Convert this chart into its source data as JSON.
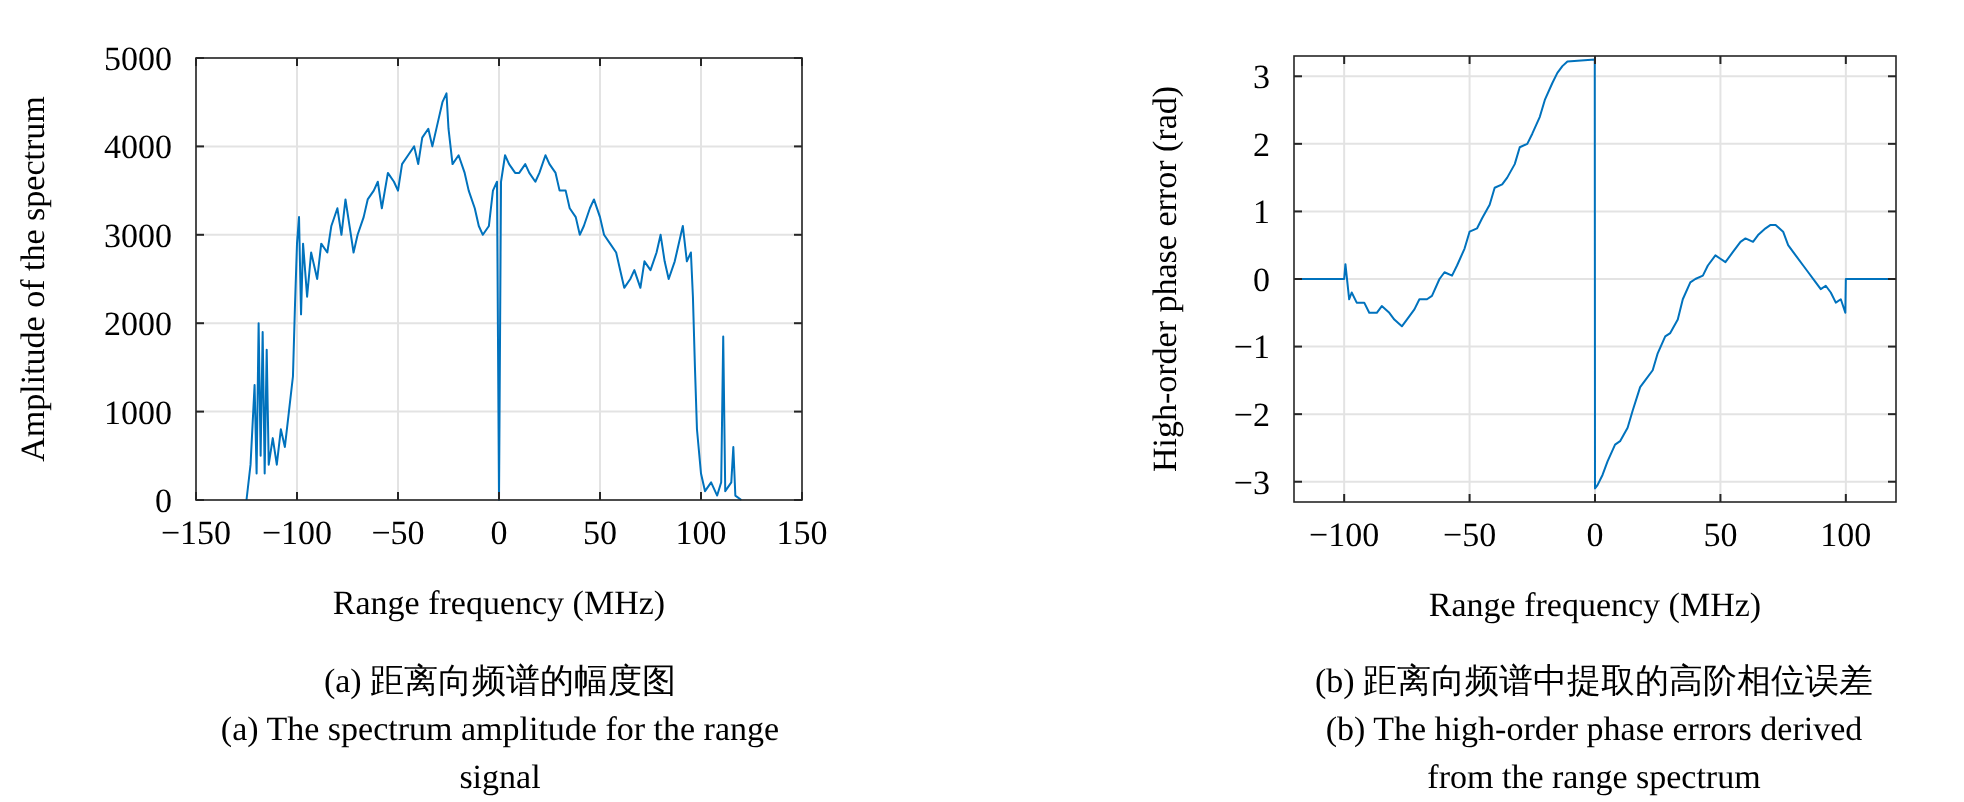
{
  "chart_data": [
    {
      "type": "line",
      "xlabel": "Range frequency (MHz)",
      "ylabel": "Amplitude of the spectrum",
      "annotations": [
        "(a) 距离向频谱的幅度图",
        "(a) The spectrum amplitude for the range signal"
      ],
      "xlim": [
        -150,
        150
      ],
      "ylim": [
        0,
        5000
      ],
      "xticks": [
        -150,
        -100,
        -50,
        0,
        50,
        100,
        150
      ],
      "yticks": [
        0,
        1000,
        2000,
        3000,
        4000,
        5000
      ],
      "grid": true,
      "line_style": "solid",
      "series": [
        {
          "color": "#0072bd",
          "x": [
            -125,
            -123,
            -121,
            -120,
            -119,
            -118,
            -117,
            -116,
            -115,
            -114,
            -112,
            -110,
            -108,
            -106,
            -104,
            -102,
            -101,
            -100,
            -99,
            -98,
            -97,
            -95,
            -93,
            -90,
            -88,
            -85,
            -83,
            -80,
            -78,
            -76,
            -74,
            -72,
            -70,
            -67,
            -65,
            -62,
            -60,
            -58,
            -55,
            -52,
            -50,
            -48,
            -45,
            -42,
            -40,
            -38,
            -35,
            -33,
            -30,
            -28,
            -26,
            -25,
            -23,
            -20,
            -17,
            -15,
            -12,
            -10,
            -8,
            -5,
            -3,
            -1,
            0,
            1,
            3,
            5,
            8,
            10,
            13,
            15,
            18,
            20,
            23,
            25,
            28,
            30,
            33,
            35,
            38,
            40,
            42,
            45,
            47,
            50,
            52,
            55,
            58,
            60,
            62,
            65,
            67,
            70,
            72,
            75,
            78,
            80,
            82,
            84,
            87,
            90,
            91,
            93,
            95,
            96,
            97,
            98,
            100,
            102,
            105,
            108,
            110,
            111,
            112,
            115,
            116,
            117,
            120
          ],
          "values": [
            0,
            400,
            1300,
            300,
            2000,
            500,
            1900,
            300,
            1700,
            400,
            700,
            400,
            800,
            600,
            1000,
            1400,
            2200,
            2900,
            3200,
            2100,
            2900,
            2300,
            2800,
            2500,
            2900,
            2800,
            3100,
            3300,
            3000,
            3400,
            3100,
            2800,
            3000,
            3200,
            3400,
            3500,
            3600,
            3300,
            3700,
            3600,
            3500,
            3800,
            3900,
            4000,
            3800,
            4100,
            4200,
            4000,
            4300,
            4500,
            4600,
            4200,
            3800,
            3900,
            3700,
            3500,
            3300,
            3100,
            3000,
            3100,
            3500,
            3600,
            0,
            3600,
            3900,
            3800,
            3700,
            3700,
            3800,
            3700,
            3600,
            3700,
            3900,
            3800,
            3700,
            3500,
            3500,
            3300,
            3200,
            3000,
            3100,
            3300,
            3400,
            3200,
            3000,
            2900,
            2800,
            2600,
            2400,
            2500,
            2600,
            2400,
            2700,
            2600,
            2800,
            3000,
            2700,
            2500,
            2700,
            3000,
            3100,
            2700,
            2800,
            2300,
            1500,
            800,
            300,
            100,
            200,
            50,
            200,
            1850,
            100,
            200,
            600,
            50,
            0
          ]
        }
      ]
    },
    {
      "type": "line",
      "xlabel": "Range frequency (MHz)",
      "ylabel": "High-order phase error  (rad)",
      "annotations": [
        "(b) 距离向频谱中提取的高阶相位误差",
        "(b) The high-order phase errors derived from the range spectrum"
      ],
      "xlim": [
        -120,
        120
      ],
      "ylim": [
        -3.3,
        3.3
      ],
      "xticks": [
        -100,
        -50,
        0,
        50,
        100
      ],
      "yticks": [
        -3,
        -2,
        -1,
        0,
        1,
        2,
        3
      ],
      "grid": true,
      "line_style": "solid",
      "series": [
        {
          "color": "#0072bd",
          "x": [
            -120,
            -100,
            -99.5,
            -98,
            -97,
            -95,
            -92,
            -90,
            -87,
            -85,
            -82,
            -80,
            -77,
            -75,
            -72,
            -70,
            -67,
            -65,
            -62,
            -60,
            -57,
            -55,
            -52,
            -50,
            -47,
            -45,
            -42,
            -40,
            -37,
            -35,
            -32,
            -30,
            -27,
            -25,
            -22,
            -20,
            -17,
            -15,
            -13,
            -11,
            -0.1,
            0,
            1,
            3,
            5,
            8,
            10,
            13,
            15,
            18,
            20,
            23,
            25,
            28,
            30,
            33,
            35,
            38,
            40,
            43,
            45,
            48,
            50,
            52,
            55,
            58,
            60,
            63,
            65,
            68,
            70,
            72,
            75,
            77,
            80,
            83,
            85,
            88,
            90,
            92,
            94,
            96,
            98,
            99.8,
            100,
            120
          ],
          "values": [
            0,
            0,
            0.22,
            -0.3,
            -0.2,
            -0.35,
            -0.35,
            -0.5,
            -0.5,
            -0.4,
            -0.5,
            -0.6,
            -0.7,
            -0.6,
            -0.45,
            -0.3,
            -0.3,
            -0.25,
            0,
            0.1,
            0.05,
            0.2,
            0.45,
            0.7,
            0.75,
            0.9,
            1.1,
            1.35,
            1.4,
            1.5,
            1.7,
            1.95,
            2,
            2.15,
            2.4,
            2.65,
            2.9,
            3.05,
            3.15,
            3.22,
            3.25,
            -3.1,
            -3.05,
            -2.9,
            -2.7,
            -2.45,
            -2.4,
            -2.2,
            -1.95,
            -1.6,
            -1.5,
            -1.35,
            -1.1,
            -0.85,
            -0.8,
            -0.6,
            -0.3,
            -0.05,
            0,
            0.05,
            0.2,
            0.35,
            0.3,
            0.25,
            0.4,
            0.55,
            0.6,
            0.55,
            0.65,
            0.75,
            0.8,
            0.8,
            0.7,
            0.5,
            0.35,
            0.2,
            0.1,
            -0.05,
            -0.15,
            -0.1,
            -0.2,
            -0.35,
            -0.3,
            -0.5,
            0,
            0
          ]
        }
      ]
    }
  ]
}
